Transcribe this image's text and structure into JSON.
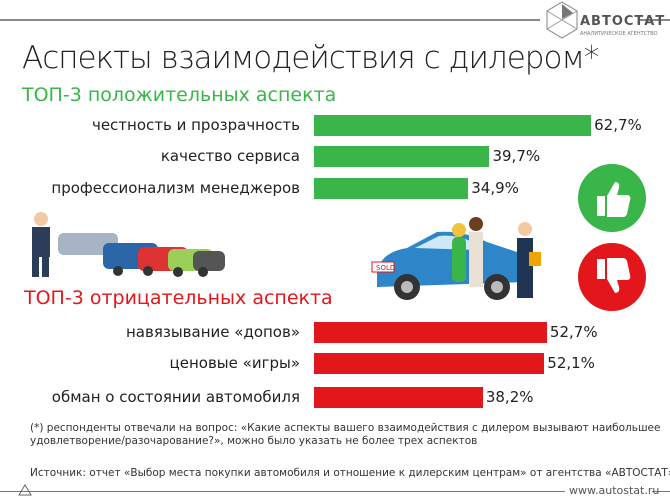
{
  "logo": {
    "name": "АВТОСТАТ",
    "subtitle": "АНАЛИТИЧЕСКОЕ АГЕНТСТВО"
  },
  "title": "Аспекты взаимодействия с дилером*",
  "colors": {
    "positive": "#3ab54a",
    "negative": "#e3161c"
  },
  "chart_data": [
    {
      "type": "bar",
      "orientation": "horizontal",
      "title": "ТОП-3 положительных аспекта",
      "categories": [
        "честность и прозрачность",
        "качество сервиса",
        "профессионализм менеджеров"
      ],
      "values": [
        62.7,
        39.7,
        34.9
      ],
      "labels": [
        "62,7%",
        "39,7%",
        "34,9%"
      ],
      "color": "#3ab54a",
      "icon": "thumbs-up-icon"
    },
    {
      "type": "bar",
      "orientation": "horizontal",
      "title": "ТОП-3 отрицательных аспекта",
      "categories": [
        "навязывание «допов»",
        "ценовые «игры»",
        "обман о состоянии автомобиля"
      ],
      "values": [
        52.7,
        52.1,
        38.2
      ],
      "labels": [
        "52,7%",
        "52,1%",
        "38,2%"
      ],
      "color": "#e3161c",
      "icon": "thumbs-down-icon"
    }
  ],
  "footnote": "(*) респонденты отвечали на вопрос: «Какие аспекты вашего взаимодействия с дилером вызывают наибольшее удовлетворение/разочарование?», можно было указать не более трех аспектов",
  "source": "Источник: отчет «Выбор места покупки автомобиля и отношение к дилерским центрам» от агентства «АВТОСТАТ»",
  "website": "www.autostat.ru",
  "sold_sign": "SOLD"
}
